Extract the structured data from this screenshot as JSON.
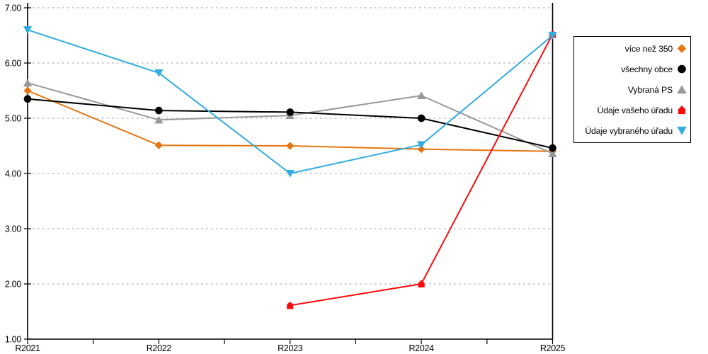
{
  "chart_data": {
    "type": "line",
    "categories": [
      "R2021",
      "R2022",
      "R2023",
      "R2024",
      "R2025"
    ],
    "series": [
      {
        "name": "více než 350",
        "color": "#E6750F",
        "marker": "diamond",
        "values": [
          5.5,
          4.51,
          4.5,
          4.44,
          4.4
        ]
      },
      {
        "name": "všechny obce",
        "color": "#000000",
        "marker": "circle",
        "values": [
          5.35,
          5.14,
          5.11,
          5.0,
          4.46
        ]
      },
      {
        "name": "Vybraná PS",
        "color": "#999999",
        "marker": "triangle-up",
        "values": [
          5.64,
          4.97,
          5.05,
          5.41,
          4.36
        ]
      },
      {
        "name": "Údaje vašeho úřadu",
        "color": "#F90B0B",
        "marker": "pentagon-house",
        "values": [
          null,
          null,
          1.61,
          2.0,
          6.52
        ]
      },
      {
        "name": "Údaje vybraného úřadu",
        "color": "#31ACE0",
        "marker": "triangle-down",
        "values": [
          6.6,
          5.82,
          4.0,
          4.52,
          6.5
        ]
      }
    ],
    "title": "",
    "xlabel": "",
    "ylabel": "",
    "ylim": [
      1,
      7
    ],
    "ytick_step": 1,
    "ytick_labels": [
      "1.00",
      "2.00",
      "3.00",
      "4.00",
      "5.00",
      "6.00",
      "7.00"
    ],
    "grid": "horizontal-dashed",
    "grid_color": "#BBBBBB",
    "axis_color": "#000000",
    "legend_position": "right-overlay",
    "draw_order": [
      0,
      2,
      1,
      3,
      4
    ],
    "minor_x_ticks_between_categories": true
  }
}
